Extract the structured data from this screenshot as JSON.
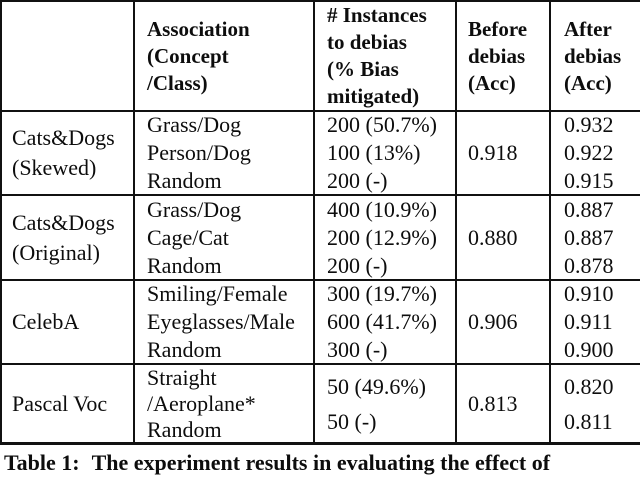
{
  "colors": {
    "background": "#ffffff",
    "text": "#0d0d0d",
    "rule": "#111111"
  },
  "table": {
    "header": {
      "dataset": "",
      "association_lines": [
        "Association",
        "(Concept",
        "/Class)"
      ],
      "instances_lines": [
        "# Instances",
        "to debias",
        "(% Bias",
        "mitigated)"
      ],
      "before_lines": [
        "Before",
        "debias",
        "(Acc)"
      ],
      "after_lines": [
        "After",
        "debias",
        "(Acc)"
      ]
    },
    "groups": [
      {
        "dataset_lines": [
          "Cats&Dogs",
          "(Skewed)"
        ],
        "before_acc": "0.918",
        "rows": [
          {
            "association": "Grass/Dog",
            "instances": "200 (50.7%)",
            "after_acc": "0.932"
          },
          {
            "association": "Person/Dog",
            "instances": "100 (13%)",
            "after_acc": "0.922"
          },
          {
            "association": "Random",
            "instances": "200 (-)",
            "after_acc": "0.915"
          }
        ]
      },
      {
        "dataset_lines": [
          "Cats&Dogs",
          "(Original)"
        ],
        "before_acc": "0.880",
        "rows": [
          {
            "association": "Grass/Dog",
            "instances": "400 (10.9%)",
            "after_acc": "0.887"
          },
          {
            "association": "Cage/Cat",
            "instances": "200 (12.9%)",
            "after_acc": "0.887"
          },
          {
            "association": "Random",
            "instances": "200 (-)",
            "after_acc": "0.878"
          }
        ]
      },
      {
        "dataset_lines": [
          "CelebA"
        ],
        "before_acc": "0.906",
        "rows": [
          {
            "association": "Smiling/Female",
            "instances": "300 (19.7%)",
            "after_acc": "0.910"
          },
          {
            "association": "Eyeglasses/Male",
            "instances": "600 (41.7%)",
            "after_acc": "0.911"
          },
          {
            "association": "Random",
            "instances": "300 (-)",
            "after_acc": "0.900"
          }
        ]
      },
      {
        "dataset_lines": [
          "Pascal Voc"
        ],
        "before_acc": "0.813",
        "association_lines": [
          "Straight",
          "/Aeroplane*",
          "Random"
        ],
        "rows": [
          {
            "instances": "50 (49.6%)",
            "after_acc": "0.820"
          },
          {
            "instances": "50 (-)",
            "after_acc": "0.811"
          }
        ]
      }
    ],
    "caption_label": "Table 1:",
    "caption_text": "The experiment results in evaluating the effect of"
  }
}
